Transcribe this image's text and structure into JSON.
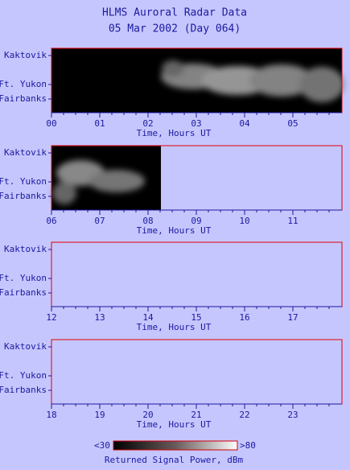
{
  "header": {
    "title": "HLMS Auroral Radar Data",
    "subtitle": "05 Mar 2002 (Day 064)"
  },
  "panels": [
    {
      "yticks": [
        "Kaktovik",
        "Ft. Yukon",
        "Fairbanks"
      ],
      "xticks": [
        "00",
        "01",
        "02",
        "03",
        "04",
        "05"
      ],
      "xlabel": "Time, Hours UT"
    },
    {
      "yticks": [
        "Kaktovik",
        "Ft. Yukon",
        "Fairbanks"
      ],
      "xticks": [
        "06",
        "07",
        "08",
        "09",
        "10",
        "11"
      ],
      "xlabel": "Time, Hours UT"
    },
    {
      "yticks": [
        "Kaktovik",
        "Ft. Yukon",
        "Fairbanks"
      ],
      "xticks": [
        "12",
        "13",
        "14",
        "15",
        "16",
        "17"
      ],
      "xlabel": "Time, Hours UT"
    },
    {
      "yticks": [
        "Kaktovik",
        "Ft. Yukon",
        "Fairbanks"
      ],
      "xticks": [
        "18",
        "19",
        "20",
        "21",
        "22",
        "23"
      ],
      "xlabel": "Time, Hours UT"
    }
  ],
  "colorbar": {
    "min_label": "<30",
    "max_label": ">80",
    "label": "Returned Signal Power, dBm"
  }
}
